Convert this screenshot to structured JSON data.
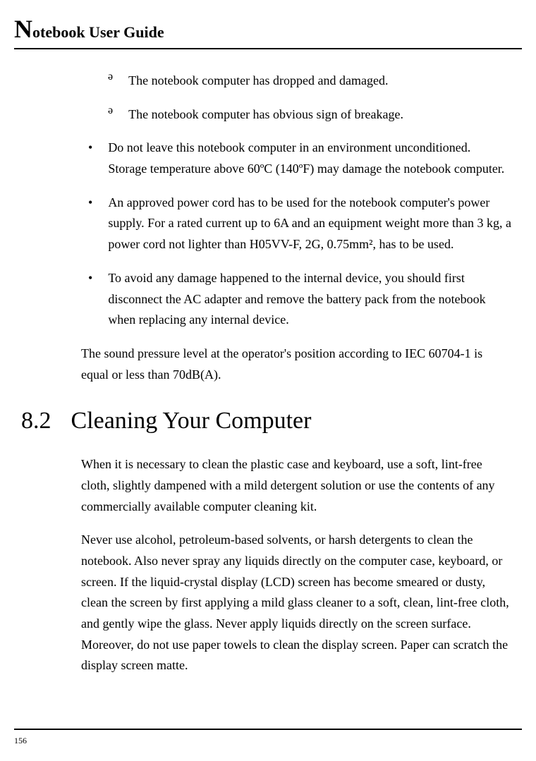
{
  "header": {
    "first_letter": "N",
    "rest": "otebook User Guide"
  },
  "sub_bullets": [
    "The notebook computer has dropped and damaged.",
    "The notebook computer has obvious sign of breakage."
  ],
  "bullets": [
    "Do not leave this notebook computer in an environment unconditioned. Storage temperature above 60ºC (140ºF) may damage the notebook computer.",
    "An approved power cord has to be used for the notebook computer's power supply.  For a rated current up to 6A and an equipment weight more than 3 kg, a power cord not lighter than H05VV-F, 2G, 0.75mm², has to be used.",
    "To avoid any damage happened to the internal device, you should first disconnect the AC adapter and remove the battery pack from the notebook when replacing any internal device."
  ],
  "after_bullets_para": "The sound pressure level at the operator's position according to IEC 60704-1 is equal or less than 70dB(A).",
  "section": {
    "number": "8.2",
    "title": "Cleaning Your Computer"
  },
  "section_paras": [
    "When it is necessary to clean the plastic case and keyboard, use a soft, lint-free cloth, slightly dampened with a mild detergent solution or use the contents of any commercially available computer cleaning kit.",
    "Never use alcohol, petroleum-based solvents, or harsh detergents to clean the notebook. Also never spray any liquids directly on the computer case, keyboard, or screen. If the liquid-crystal display (LCD) screen has become smeared or dusty, clean the screen by first applying a mild glass cleaner to a soft, clean, lint-free cloth, and gently wipe the glass. Never apply liquids directly on the screen surface. Moreover, do not use paper towels to clean the display screen. Paper can scratch the display screen matte."
  ],
  "page_number": "156",
  "styling": {
    "font_family": "Garamond, Georgia, serif",
    "body_font_size": 18,
    "heading_font_size": 34,
    "header_font_size": 22,
    "drop_cap_size": 36,
    "page_number_size": 12,
    "text_color": "#000000",
    "background_color": "#ffffff",
    "rule_color": "#000000",
    "line_height": 1.65,
    "content_left_indent": 95,
    "bullet_indent": 10,
    "sub_bullet_indent": 38,
    "sub_bullet_char": "ə",
    "bullet_char": "•"
  }
}
